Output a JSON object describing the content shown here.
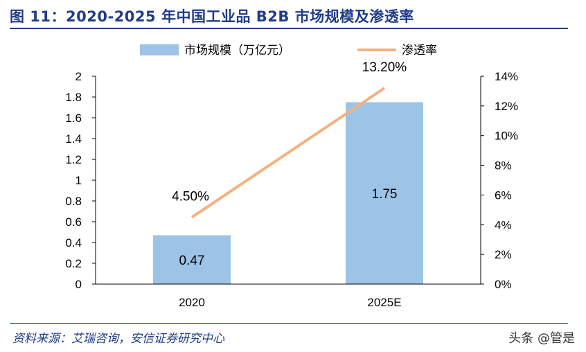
{
  "header": {
    "title": "图 11：2020-2025 年中国工业品 B2B 市场规模及渗透率"
  },
  "footer": {
    "source": "资料来源：艾瑞咨询，安信证券研究中心",
    "watermark": "头条 @管是"
  },
  "colors": {
    "bar": "#9dc3e6",
    "line": "#f4b183",
    "title": "#1f3c88"
  },
  "chart_data": {
    "type": "bar",
    "categories": [
      "2020",
      "2025E"
    ],
    "series": [
      {
        "name": "市场规模（万亿元）",
        "type": "bar",
        "axis": "left",
        "values": [
          0.47,
          1.75
        ],
        "labels": [
          "0.47",
          "1.75"
        ]
      },
      {
        "name": "渗透率",
        "type": "line",
        "axis": "right",
        "values": [
          4.5,
          13.2
        ],
        "labels": [
          "4.50%",
          "13.20%"
        ]
      }
    ],
    "y_left": {
      "min": 0,
      "max": 2,
      "ticks": [
        "0",
        "0.2",
        "0.4",
        "0.6",
        "0.8",
        "1",
        "1.2",
        "1.4",
        "1.6",
        "1.8",
        "2"
      ]
    },
    "y_right": {
      "min": 0,
      "max": 14,
      "ticks": [
        "0%",
        "2%",
        "4%",
        "6%",
        "8%",
        "10%",
        "12%",
        "14%"
      ]
    },
    "legend_position": "top-center",
    "grid": false
  }
}
